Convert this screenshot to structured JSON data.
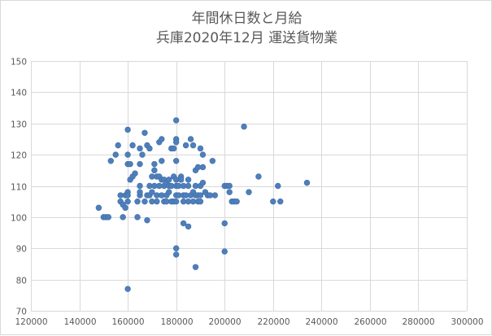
{
  "chart_data": {
    "type": "scatter",
    "title": "年間休日数と月給",
    "subtitle": "兵庫2020年12月  運送貨物業",
    "xlim": [
      120000,
      300000
    ],
    "ylim": [
      70,
      150
    ],
    "x_ticks": [
      120000,
      140000,
      160000,
      180000,
      200000,
      220000,
      240000,
      260000,
      280000,
      300000
    ],
    "y_ticks": [
      70,
      80,
      90,
      100,
      110,
      120,
      130,
      140,
      150
    ],
    "x_gridlines": true,
    "y_gridlines": true,
    "marker_color": "#4e7fbb",
    "series": [
      {
        "points": [
          [
            148000,
            103
          ],
          [
            150000,
            100
          ],
          [
            151000,
            100
          ],
          [
            152000,
            100
          ],
          [
            153000,
            118
          ],
          [
            155000,
            120
          ],
          [
            156000,
            123
          ],
          [
            157000,
            107
          ],
          [
            157000,
            105
          ],
          [
            158000,
            100
          ],
          [
            158000,
            104
          ],
          [
            159000,
            103
          ],
          [
            159000,
            107
          ],
          [
            160000,
            128
          ],
          [
            160000,
            120
          ],
          [
            160000,
            117
          ],
          [
            160000,
            108
          ],
          [
            160000,
            107
          ],
          [
            160000,
            105
          ],
          [
            160000,
            77
          ],
          [
            161000,
            117
          ],
          [
            161000,
            112
          ],
          [
            162000,
            123
          ],
          [
            162000,
            113
          ],
          [
            163000,
            114
          ],
          [
            164000,
            100
          ],
          [
            164000,
            105
          ],
          [
            165000,
            107
          ],
          [
            165000,
            108
          ],
          [
            165000,
            110
          ],
          [
            165000,
            117
          ],
          [
            165000,
            122
          ],
          [
            166000,
            120
          ],
          [
            167000,
            127
          ],
          [
            167000,
            105
          ],
          [
            168000,
            123
          ],
          [
            168000,
            107
          ],
          [
            168000,
            99
          ],
          [
            169000,
            122
          ],
          [
            169000,
            110
          ],
          [
            169000,
            107
          ],
          [
            170000,
            105
          ],
          [
            170000,
            113
          ],
          [
            170000,
            108
          ],
          [
            171000,
            117
          ],
          [
            171000,
            115
          ],
          [
            171000,
            110
          ],
          [
            172000,
            113
          ],
          [
            172000,
            107
          ],
          [
            172000,
            105
          ],
          [
            173000,
            110
          ],
          [
            173000,
            124
          ],
          [
            173000,
            113
          ],
          [
            174000,
            125
          ],
          [
            174000,
            118
          ],
          [
            174000,
            112
          ],
          [
            174000,
            107
          ],
          [
            175000,
            105
          ],
          [
            175000,
            110
          ],
          [
            175000,
            112
          ],
          [
            176000,
            111
          ],
          [
            176000,
            107
          ],
          [
            176000,
            105
          ],
          [
            177000,
            110
          ],
          [
            177000,
            112
          ],
          [
            177000,
            108
          ],
          [
            178000,
            122
          ],
          [
            178000,
            110
          ],
          [
            178000,
            105
          ],
          [
            179000,
            113
          ],
          [
            179000,
            122
          ],
          [
            179000,
            105
          ],
          [
            180000,
            131
          ],
          [
            180000,
            125
          ],
          [
            180000,
            124
          ],
          [
            180000,
            118
          ],
          [
            180000,
            112
          ],
          [
            180000,
            110
          ],
          [
            180000,
            107
          ],
          [
            180000,
            105
          ],
          [
            180000,
            90
          ],
          [
            180000,
            88
          ],
          [
            181000,
            110
          ],
          [
            181000,
            107
          ],
          [
            182000,
            113
          ],
          [
            182000,
            112
          ],
          [
            183000,
            110
          ],
          [
            183000,
            107
          ],
          [
            183000,
            105
          ],
          [
            183000,
            98
          ],
          [
            184000,
            123
          ],
          [
            184000,
            107
          ],
          [
            185000,
            112
          ],
          [
            185000,
            110
          ],
          [
            185000,
            105
          ],
          [
            185000,
            97
          ],
          [
            186000,
            125
          ],
          [
            186000,
            107
          ],
          [
            187000,
            123
          ],
          [
            187000,
            105
          ],
          [
            187000,
            108
          ],
          [
            188000,
            84
          ],
          [
            188000,
            107
          ],
          [
            188000,
            115
          ],
          [
            188000,
            110
          ],
          [
            189000,
            116
          ],
          [
            189000,
            105
          ],
          [
            189000,
            107
          ],
          [
            190000,
            122
          ],
          [
            190000,
            110
          ],
          [
            190000,
            107
          ],
          [
            190000,
            105
          ],
          [
            191000,
            120
          ],
          [
            191000,
            116
          ],
          [
            191000,
            111
          ],
          [
            192000,
            108
          ],
          [
            193000,
            107
          ],
          [
            194000,
            107
          ],
          [
            195000,
            118
          ],
          [
            196000,
            107
          ],
          [
            200000,
            110
          ],
          [
            200000,
            98
          ],
          [
            200000,
            89
          ],
          [
            201000,
            110
          ],
          [
            202000,
            110
          ],
          [
            202000,
            108
          ],
          [
            203000,
            105
          ],
          [
            204000,
            105
          ],
          [
            205000,
            105
          ],
          [
            208000,
            129
          ],
          [
            210000,
            108
          ],
          [
            214000,
            113
          ],
          [
            220000,
            105
          ],
          [
            222000,
            110
          ],
          [
            223000,
            105
          ],
          [
            234000,
            111
          ]
        ]
      }
    ]
  }
}
